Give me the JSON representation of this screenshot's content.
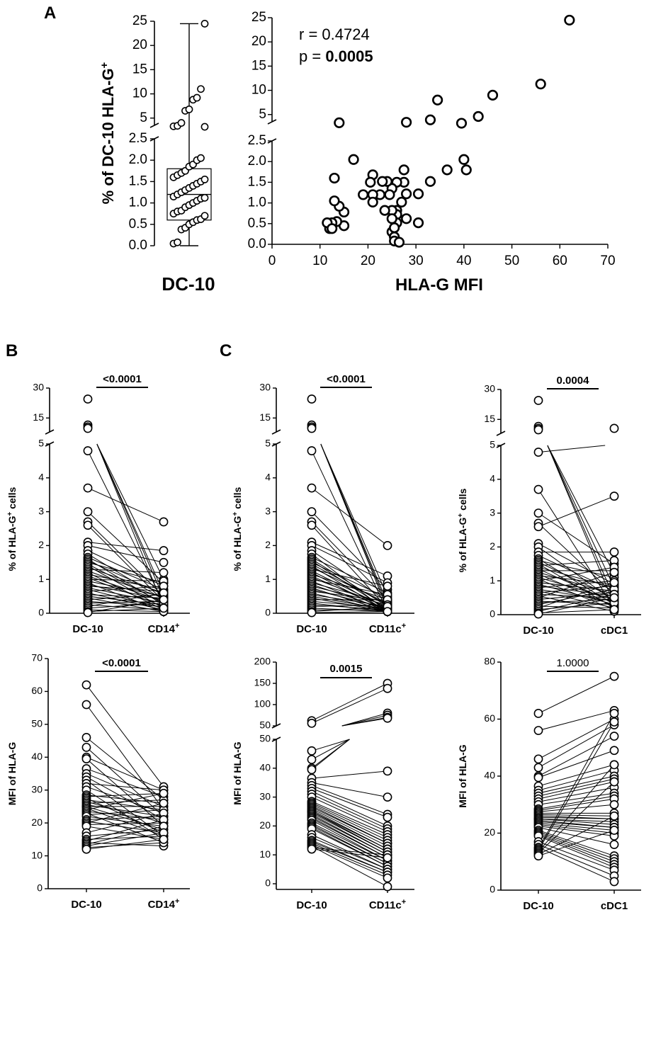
{
  "panel_letters": {
    "a": "A",
    "b": "B",
    "c": "C"
  },
  "chart_data": [
    {
      "id": "A-left",
      "type": "box-scatter",
      "ylabel_prefix": "% of DC-10 HLA-G",
      "ylabel_sup": "+",
      "xlabel": "DC-10",
      "y_ticks_low": [
        "0.0",
        "0.5",
        "1.0",
        "1.5",
        "2.0",
        "2.5"
      ],
      "y_ticks_high": [
        "5",
        "10",
        "15",
        "20",
        "25"
      ],
      "box": {
        "min": 0.0,
        "q1": 0.6,
        "median": 1.2,
        "q3": 1.8,
        "max": 24.5
      },
      "values": [
        0.05,
        0.08,
        0.38,
        0.42,
        0.5,
        0.55,
        0.6,
        0.62,
        0.7,
        0.75,
        0.8,
        0.82,
        0.9,
        0.95,
        1.0,
        1.05,
        1.1,
        1.12,
        1.15,
        1.2,
        1.25,
        1.3,
        1.35,
        1.4,
        1.45,
        1.5,
        1.55,
        1.6,
        1.65,
        1.7,
        1.75,
        1.85,
        1.9,
        2.0,
        2.05,
        3.2,
        3.3,
        3.4,
        4.0,
        6.5,
        6.8,
        8.8,
        9.2,
        11.0,
        24.5
      ]
    },
    {
      "id": "A-right",
      "type": "scatter",
      "xlabel": "HLA-G MFI",
      "stat_r": "r = 0.4724",
      "stat_p_prefix": "p = ",
      "stat_p_value": "0.0005",
      "x_ticks": [
        "0",
        "10",
        "20",
        "30",
        "40",
        "50",
        "60",
        "70"
      ],
      "xlim": [
        0,
        70
      ],
      "y_ticks_low": [
        "0.0",
        "0.5",
        "1.0",
        "1.5",
        "2.0",
        "2.5"
      ],
      "y_ticks_high": [
        "5",
        "10",
        "15",
        "20",
        "25"
      ],
      "points": [
        [
          62,
          24.5
        ],
        [
          56,
          11.3
        ],
        [
          46,
          9.0
        ],
        [
          43,
          4.6
        ],
        [
          39.5,
          3.2
        ],
        [
          34.5,
          8.0
        ],
        [
          33,
          3.9
        ],
        [
          28,
          3.4
        ],
        [
          14,
          3.3
        ],
        [
          40,
          2.05
        ],
        [
          40.5,
          1.8
        ],
        [
          36.5,
          1.8
        ],
        [
          33,
          1.52
        ],
        [
          30.5,
          1.22
        ],
        [
          27.5,
          1.8
        ],
        [
          27.5,
          1.5
        ],
        [
          28,
          1.22
        ],
        [
          27,
          1.02
        ],
        [
          28,
          0.62
        ],
        [
          30.5,
          0.52
        ],
        [
          26,
          1.5
        ],
        [
          26,
          0.82
        ],
        [
          26,
          0.72
        ],
        [
          26,
          0.52
        ],
        [
          25,
          1.35
        ],
        [
          25,
          0.82
        ],
        [
          25,
          0.62
        ],
        [
          24.5,
          1.2
        ],
        [
          24,
          1.52
        ],
        [
          23.5,
          0.82
        ],
        [
          23,
          1.52
        ],
        [
          22.5,
          1.2
        ],
        [
          21,
          1.68
        ],
        [
          21,
          1.2
        ],
        [
          21,
          1.02
        ],
        [
          20.5,
          1.5
        ],
        [
          19,
          1.2
        ],
        [
          17,
          2.05
        ],
        [
          15,
          0.78
        ],
        [
          15,
          0.45
        ],
        [
          14,
          0.92
        ],
        [
          13.5,
          0.55
        ],
        [
          13,
          1.6
        ],
        [
          13,
          1.05
        ],
        [
          12.5,
          0.52
        ],
        [
          12,
          0.38
        ],
        [
          11.5,
          0.52
        ],
        [
          12.5,
          0.38
        ],
        [
          25,
          0.3
        ],
        [
          25.5,
          0.18
        ],
        [
          25.5,
          0.08
        ],
        [
          26.5,
          0.05
        ],
        [
          25.5,
          0.4
        ]
      ]
    },
    {
      "id": "B-top",
      "type": "paired-line",
      "ylabel_prefix": "% of HLA-G",
      "ylabel_sup": "+",
      "ylabel_suffix": " cells",
      "categories": [
        "DC-10",
        "CD14"
      ],
      "category_sups": [
        "",
        "+"
      ],
      "significance": "<0.0001",
      "significance_bold": true,
      "y_ticks_low": [
        "0",
        "1",
        "2",
        "3",
        "4",
        "5"
      ],
      "y_ticks_high": [
        "15",
        "30"
      ],
      "left": [
        24.5,
        11.5,
        10.5,
        9.8,
        4.8,
        3.7,
        3.0,
        2.7,
        2.6,
        2.1,
        2.0,
        1.85,
        1.75,
        1.65,
        1.6,
        1.55,
        1.5,
        1.45,
        1.4,
        1.35,
        1.3,
        1.25,
        1.2,
        1.15,
        1.1,
        1.05,
        1.0,
        0.95,
        0.9,
        0.85,
        0.8,
        0.75,
        0.7,
        0.65,
        0.6,
        0.55,
        0.5,
        0.45,
        0.4,
        0.35,
        0.3,
        0.25,
        0.2,
        0.15,
        0.1,
        0.05,
        0.02
      ],
      "right": [
        1.0,
        0.2,
        0.6,
        0.45,
        0.3,
        2.7,
        0.9,
        0.5,
        0.35,
        1.85,
        1.5,
        0.8,
        0.4,
        0.7,
        0.25,
        0.55,
        0.9,
        0.3,
        0.15,
        0.6,
        1.2,
        0.45,
        0.1,
        0.7,
        0.35,
        0.2,
        0.95,
        0.5,
        0.05,
        0.4,
        0.65,
        0.3,
        0.15,
        0.8,
        0.1,
        0.45,
        0.25,
        0.05,
        0.55,
        0.2,
        0.35,
        0.1,
        0.6,
        0.3,
        0.05,
        0.15,
        0.4
      ]
    },
    {
      "id": "C-top-1",
      "type": "paired-line",
      "ylabel_prefix": "% of HLA-G",
      "ylabel_sup": "+",
      "ylabel_suffix": " cells",
      "categories": [
        "DC-10",
        "CD11c"
      ],
      "category_sups": [
        "",
        "+"
      ],
      "significance": "<0.0001",
      "significance_bold": true,
      "y_ticks_low": [
        "0",
        "1",
        "2",
        "3",
        "4",
        "5"
      ],
      "y_ticks_high": [
        "15",
        "30"
      ],
      "left": [
        24.5,
        11.5,
        10.5,
        9.8,
        4.8,
        3.7,
        3.0,
        2.7,
        2.6,
        2.1,
        2.0,
        1.85,
        1.75,
        1.65,
        1.6,
        1.55,
        1.5,
        1.45,
        1.4,
        1.35,
        1.3,
        1.25,
        1.2,
        1.15,
        1.1,
        1.05,
        1.0,
        0.95,
        0.9,
        0.85,
        0.8,
        0.75,
        0.7,
        0.65,
        0.6,
        0.55,
        0.5,
        0.45,
        0.4,
        0.35,
        0.3,
        0.25,
        0.2,
        0.15,
        0.1,
        0.05,
        0.02
      ],
      "right": [
        0.3,
        0.1,
        0.5,
        0.2,
        0.05,
        2.0,
        0.7,
        0.4,
        0.15,
        1.1,
        0.9,
        0.35,
        0.05,
        0.6,
        0.2,
        0.1,
        0.45,
        0.25,
        0.05,
        0.3,
        0.8,
        0.15,
        0.05,
        0.4,
        0.1,
        0.2,
        0.55,
        0.05,
        0.3,
        0.1,
        0.25,
        0.05,
        0.15,
        0.35,
        0.05,
        0.2,
        0.1,
        0.05,
        0.4,
        0.15,
        0.05,
        0.1,
        0.25,
        0.05,
        0.1,
        0.2,
        0.05
      ]
    },
    {
      "id": "C-top-2",
      "type": "paired-line",
      "ylabel_prefix": "% of HLA-G",
      "ylabel_sup": "+",
      "ylabel_suffix": " cells",
      "categories": [
        "DC-10",
        "cDC1"
      ],
      "category_sups": [
        "",
        ""
      ],
      "significance": "0.0004",
      "significance_bold": true,
      "y_ticks_low": [
        "0",
        "1",
        "2",
        "3",
        "4",
        "5"
      ],
      "y_ticks_high": [
        "15",
        "30"
      ],
      "left": [
        24.5,
        11.5,
        10.5,
        9.8,
        4.8,
        3.7,
        3.0,
        2.7,
        2.6,
        2.1,
        2.0,
        1.85,
        1.75,
        1.65,
        1.6,
        1.55,
        1.5,
        1.45,
        1.4,
        1.35,
        1.3,
        1.25,
        1.2,
        1.15,
        1.1,
        1.05,
        1.0,
        0.95,
        0.9,
        0.85,
        0.8,
        0.75,
        0.7,
        0.65,
        0.6,
        0.55,
        0.5,
        0.45,
        0.4,
        0.35,
        0.3,
        0.25,
        0.2,
        0.15,
        0.1,
        0.05,
        0.02
      ],
      "right": [
        0.5,
        0.3,
        1.2,
        0.8,
        10.5,
        0.2,
        1.5,
        0.6,
        3.5,
        0.9,
        0.4,
        1.85,
        0.7,
        0.3,
        1.1,
        0.5,
        0.2,
        1.6,
        0.8,
        0.35,
        1.3,
        0.6,
        0.25,
        0.9,
        0.45,
        0.15,
        1.4,
        0.7,
        0.3,
        0.55,
        1.0,
        0.4,
        0.2,
        0.85,
        0.5,
        0.1,
        1.25,
        0.65,
        0.3,
        0.45,
        0.75,
        0.2,
        0.95,
        0.35,
        0.6,
        0.15,
        0.5
      ]
    },
    {
      "id": "B-bottom",
      "type": "paired-line",
      "ylabel_prefix": "MFI of HLA-G",
      "categories": [
        "DC-10",
        "CD14"
      ],
      "category_sups": [
        "",
        "+"
      ],
      "significance": "<0.0001",
      "significance_bold": true,
      "y_ticks": [
        "0",
        "10",
        "20",
        "30",
        "40",
        "50",
        "60",
        "70"
      ],
      "ylim": [
        0,
        70
      ],
      "left": [
        62,
        56,
        46,
        43,
        40,
        39.5,
        36.5,
        35,
        34,
        33,
        32,
        31,
        30,
        28.5,
        28,
        27.5,
        27,
        26.5,
        26,
        25.5,
        25,
        25,
        24.5,
        24,
        23.5,
        23,
        22.5,
        22,
        21,
        20.5,
        20,
        19.5,
        19,
        17,
        16,
        15,
        14.5,
        14,
        13.5,
        13,
        12.5,
        12
      ],
      "right": [
        31,
        24,
        27,
        22,
        30,
        19,
        28,
        25,
        21,
        16,
        30,
        23,
        15,
        26,
        29,
        17,
        24,
        20,
        27,
        22,
        18,
        25,
        16,
        29,
        21,
        14,
        24,
        19,
        22,
        17,
        26,
        20,
        15,
        23,
        18,
        16,
        21,
        13,
        19,
        17,
        14,
        15
      ]
    },
    {
      "id": "C-bottom-1",
      "type": "paired-line",
      "ylabel_prefix": "MFI of HLA-G",
      "categories": [
        "DC-10",
        "CD11c"
      ],
      "category_sups": [
        "",
        "+"
      ],
      "significance": "0.0015",
      "significance_bold": true,
      "y_ticks_low": [
        "0",
        "10",
        "20",
        "30",
        "40",
        "50"
      ],
      "y_ticks_high": [
        "50",
        "100",
        "150",
        "200"
      ],
      "left": [
        62,
        56,
        46,
        43,
        40,
        39.5,
        36.5,
        35,
        34,
        33,
        32,
        31,
        30,
        28.5,
        28,
        27.5,
        27,
        26.5,
        26,
        25.5,
        25,
        25,
        24.5,
        24,
        23.5,
        23,
        22.5,
        22,
        21,
        20.5,
        20,
        19.5,
        19,
        17,
        16,
        15,
        14.5,
        14,
        13.5,
        13,
        12.5,
        12
      ],
      "right": [
        150,
        138,
        80,
        75,
        70,
        68,
        39,
        30,
        24,
        23,
        20,
        19,
        18,
        17,
        16,
        15,
        14,
        14,
        13,
        12,
        12,
        11,
        11,
        10,
        10,
        9,
        9,
        8,
        8,
        7,
        7,
        6,
        6,
        5,
        5,
        4,
        4,
        3,
        2,
        -1,
        10,
        9
      ]
    },
    {
      "id": "C-bottom-2",
      "type": "paired-line",
      "ylabel_prefix": "MFI of HLA-G",
      "categories": [
        "DC-10",
        "cDC1"
      ],
      "category_sups": [
        "",
        ""
      ],
      "significance": "1.0000",
      "significance_bold": false,
      "y_ticks": [
        "0",
        "20",
        "40",
        "60",
        "80"
      ],
      "ylim": [
        0,
        80
      ],
      "left": [
        62,
        56,
        46,
        43,
        40,
        39.5,
        36.5,
        35,
        34,
        33,
        32,
        31,
        30,
        28.5,
        28,
        27.5,
        27,
        26.5,
        26,
        25.5,
        25,
        25,
        24.5,
        24,
        23.5,
        23,
        22.5,
        22,
        21,
        20.5,
        20,
        19.5,
        19,
        17,
        16,
        15,
        14.5,
        14,
        13.5,
        13,
        12.5,
        12
      ],
      "right": [
        75,
        63,
        60,
        58,
        54,
        49,
        44,
        42,
        40,
        39,
        38,
        36,
        34,
        33,
        32,
        30,
        27,
        26,
        25,
        25,
        24,
        23,
        22,
        22,
        21,
        20,
        19,
        16,
        12,
        11,
        10,
        9,
        8,
        7,
        5,
        3,
        62,
        59,
        44,
        38,
        26,
        21
      ]
    }
  ]
}
